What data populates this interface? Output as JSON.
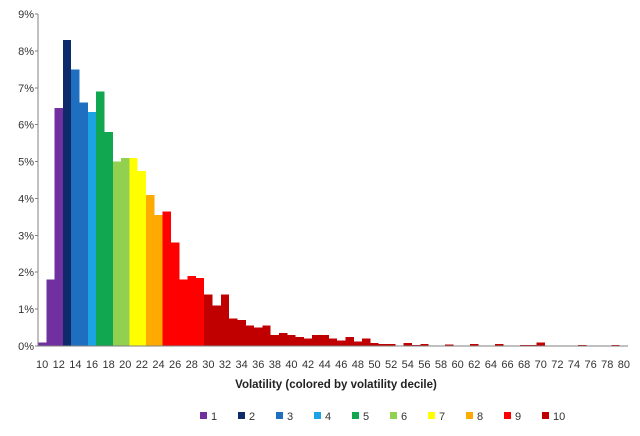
{
  "chart_data": {
    "type": "bar",
    "title": "",
    "xlabel": "Volatility (colored by volatility decile)",
    "ylabel": "",
    "grid": false,
    "legend_placement": "bottom",
    "xlim": [
      10,
      81
    ],
    "ylim": [
      0,
      9
    ],
    "y_unit": "%",
    "x_tick_labels": [
      "10",
      "12",
      "14",
      "16",
      "18",
      "20",
      "22",
      "24",
      "26",
      "28",
      "30",
      "32",
      "34",
      "36",
      "38",
      "40",
      "42",
      "44",
      "46",
      "48",
      "50",
      "52",
      "54",
      "56",
      "58",
      "60",
      "62",
      "64",
      "66",
      "68",
      "70",
      "72",
      "74",
      "76",
      "78",
      "80"
    ],
    "y_tick_labels": [
      "0%",
      "1%",
      "2%",
      "3%",
      "4%",
      "5%",
      "6%",
      "7%",
      "8%",
      "9%"
    ],
    "bar_width": 1,
    "series": [
      {
        "name": "1",
        "color": "#7030a0",
        "x": [
          10,
          11,
          12,
          13
        ],
        "values": [
          0.1,
          1.8,
          6.45,
          1.6
        ]
      },
      {
        "name": "2",
        "color": "#0d2b6b",
        "x": [
          13,
          14
        ],
        "values": [
          8.3,
          3.3
        ]
      },
      {
        "name": "3",
        "color": "#1f6fc1",
        "x": [
          14,
          15,
          16
        ],
        "values": [
          7.5,
          6.6,
          5.75
        ]
      },
      {
        "name": "4",
        "color": "#1ba3e6",
        "x": [
          16,
          17,
          18
        ],
        "values": [
          6.35,
          2.85,
          0.1
        ]
      },
      {
        "name": "5",
        "color": "#11a650",
        "x": [
          17,
          18,
          19
        ],
        "values": [
          6.9,
          5.8,
          0.1
        ]
      },
      {
        "name": "6",
        "color": "#92d050",
        "x": [
          19,
          20,
          21
        ],
        "values": [
          5.0,
          5.1,
          0.1
        ]
      },
      {
        "name": "7",
        "color": "#ffff00",
        "x": [
          21,
          22,
          23
        ],
        "values": [
          5.1,
          4.75,
          0.2
        ]
      },
      {
        "name": "8",
        "color": "#ffaa00",
        "x": [
          23,
          24,
          25
        ],
        "values": [
          4.1,
          3.55,
          2.55
        ]
      },
      {
        "name": "9",
        "color": "#ff0000",
        "x": [
          25,
          26,
          27,
          28,
          29,
          30
        ],
        "values": [
          3.65,
          2.8,
          1.8,
          1.9,
          1.85,
          0.35
        ]
      },
      {
        "name": "10",
        "color": "#c00000",
        "x": [
          30,
          31,
          32,
          33,
          34,
          35,
          36,
          37,
          38,
          39,
          40,
          41,
          42,
          43,
          44,
          45,
          46,
          47,
          48,
          49,
          50,
          51,
          52,
          53,
          54,
          55,
          56,
          57,
          58,
          59,
          60,
          61,
          62,
          63,
          64,
          65,
          66,
          67,
          68,
          69,
          70,
          71,
          72,
          73,
          74,
          75,
          76,
          77,
          78,
          79,
          80
        ],
        "values": [
          1.4,
          1.1,
          1.4,
          0.75,
          0.7,
          0.55,
          0.5,
          0.55,
          0.3,
          0.35,
          0.3,
          0.25,
          0.2,
          0.3,
          0.3,
          0.2,
          0.15,
          0.25,
          0.12,
          0.2,
          0.08,
          0.06,
          0.05,
          0.02,
          0.08,
          0.03,
          0.05,
          0.02,
          0.02,
          0.04,
          0.02,
          0.02,
          0.05,
          0.01,
          0.02,
          0.05,
          0.01,
          0.02,
          0.03,
          0.03,
          0.1,
          0.01,
          0.02,
          0.01,
          0.01,
          0.03,
          0.01,
          0.01,
          0.01,
          0.03,
          0.01
        ]
      }
    ]
  }
}
